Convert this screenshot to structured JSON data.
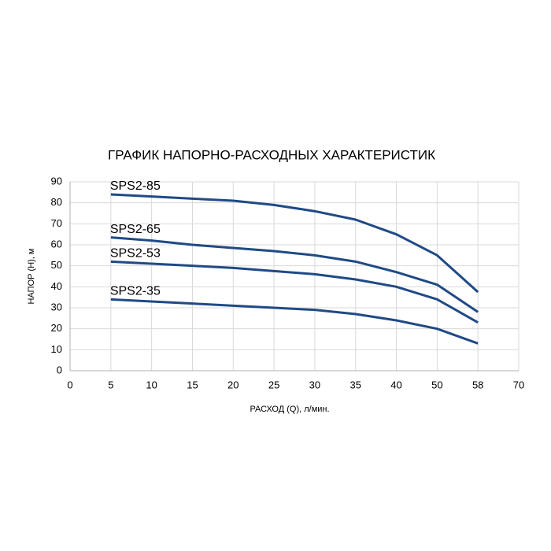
{
  "chart_data": {
    "type": "line",
    "title": "ГРАФИК НАПОРНО-РАСХОДНЫХ ХАРАКТЕРИСТИК",
    "x_label": "РАСХОД (Q), л/мин.",
    "y_label": "НАПОР (H), м",
    "categories": [
      0,
      5,
      10,
      15,
      20,
      25,
      30,
      35,
      40,
      50,
      58,
      70
    ],
    "series": [
      {
        "name": "SPS2-85",
        "color": "#1f4a86",
        "values": [
          null,
          84,
          83,
          82,
          81,
          79,
          76,
          72,
          65,
          55,
          37.5,
          null
        ]
      },
      {
        "name": "SPS2-65",
        "color": "#1f4a86",
        "values": [
          null,
          63.5,
          62,
          60,
          58.5,
          57,
          55,
          52,
          47,
          41,
          28,
          null
        ]
      },
      {
        "name": "SPS2-53",
        "color": "#1f4a86",
        "values": [
          null,
          52,
          51,
          50,
          49,
          47.5,
          46,
          43.5,
          40,
          34,
          23,
          null
        ]
      },
      {
        "name": "SPS2-35",
        "color": "#1f4a86",
        "values": [
          null,
          34,
          33,
          32,
          31,
          30,
          29,
          27,
          24,
          20,
          13,
          null
        ]
      }
    ],
    "ylim": [
      0,
      90
    ],
    "yticks": [
      0,
      10,
      20,
      30,
      40,
      50,
      60,
      70,
      80,
      90
    ],
    "grid": true
  }
}
